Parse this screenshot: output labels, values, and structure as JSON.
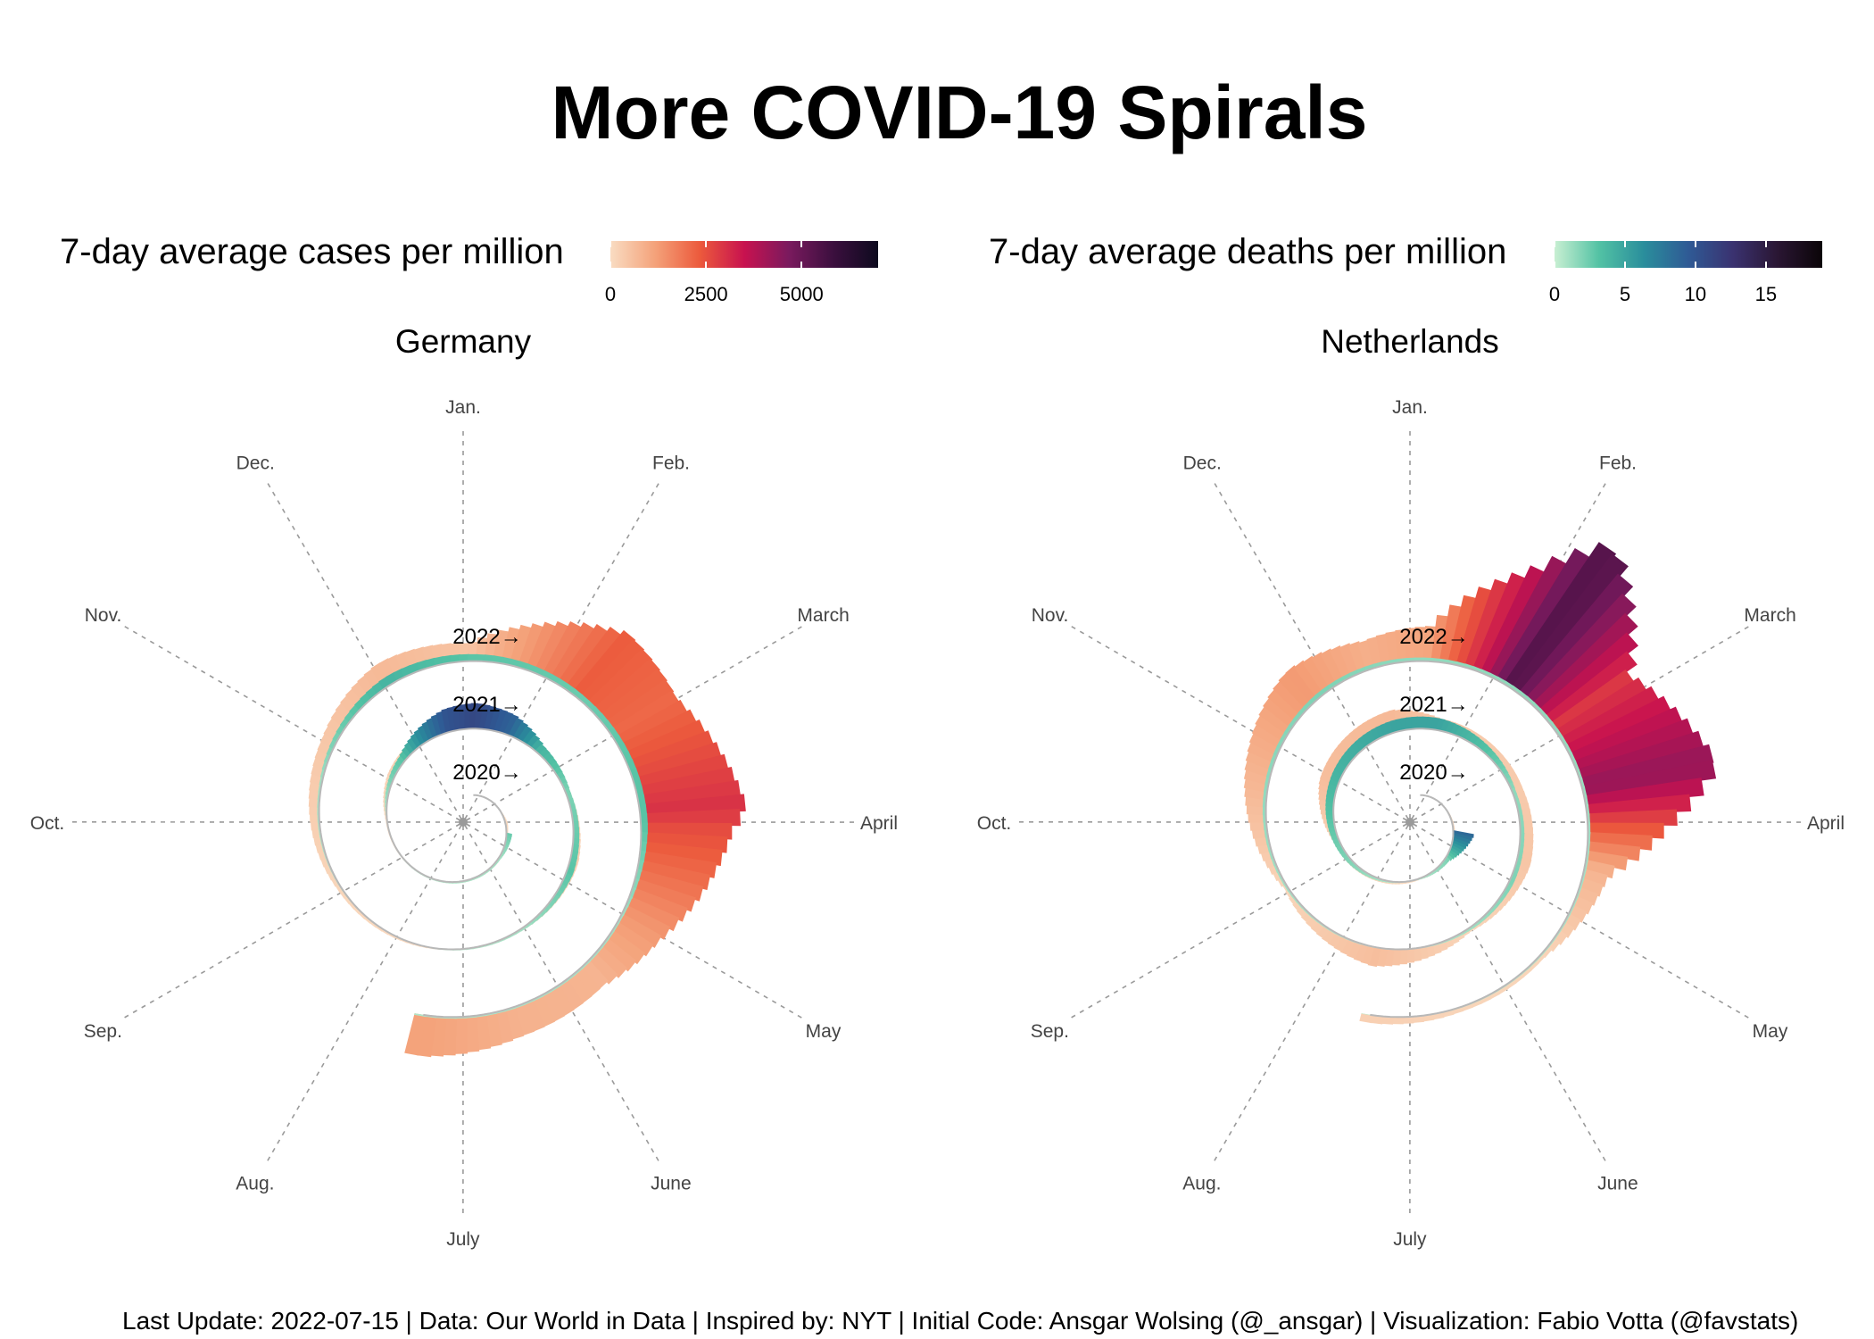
{
  "title": "More COVID-19 Spirals",
  "footer": "Last Update: 2022-07-15 | Data: Our World in Data | Inspired by: NYT | Initial Code: Ansgar Wolsing (@_ansgar) | Visualization: Fabio Votta (@favstats)",
  "months": [
    "Jan.",
    "Feb.",
    "March",
    "April",
    "May",
    "June",
    "July",
    "Aug.",
    "Sep.",
    "Oct.",
    "Nov.",
    "Dec."
  ],
  "year_labels": [
    "2020→",
    "2021→",
    "2022→"
  ],
  "legends": {
    "cases": {
      "title": "7-day average cases per million",
      "ticks": [
        "0",
        "2500",
        "5000"
      ],
      "tick_values": [
        0,
        2500,
        5000
      ],
      "max": 7000,
      "colors": [
        "#f9dcc2",
        "#f4a27a",
        "#ec5a3c",
        "#c8124f",
        "#7a1a5e",
        "#3b0f3e",
        "#0d0a1e"
      ]
    },
    "deaths": {
      "title": "7-day average deaths per million",
      "ticks": [
        "0",
        "5",
        "10",
        "15"
      ],
      "tick_values": [
        0,
        5,
        10,
        15
      ],
      "max": 19,
      "colors": [
        "#c8efd2",
        "#52c2a4",
        "#2a8e9c",
        "#2f5a95",
        "#3a3270",
        "#2a1633",
        "#0b0508"
      ]
    }
  },
  "chart_data": [
    {
      "type": "spiral",
      "title": "Germany",
      "measure": "7-day average cases per million",
      "period": [
        "2020-01",
        "2022-07"
      ],
      "series": [
        {
          "name": "cases",
          "points": [
            [
              "2020-03-15",
              20
            ],
            [
              "2020-04-01",
              70
            ],
            [
              "2020-05-01",
              20
            ],
            [
              "2020-07-01",
              5
            ],
            [
              "2020-10-01",
              40
            ],
            [
              "2020-11-01",
              210
            ],
            [
              "2020-12-15",
              300
            ],
            [
              "2021-01-01",
              260
            ],
            [
              "2021-02-01",
              120
            ],
            [
              "2021-03-15",
              120
            ],
            [
              "2021-04-20",
              250
            ],
            [
              "2021-06-01",
              60
            ],
            [
              "2021-07-01",
              10
            ],
            [
              "2021-09-01",
              120
            ],
            [
              "2021-11-01",
              420
            ],
            [
              "2021-12-01",
              700
            ],
            [
              "2022-01-01",
              500
            ],
            [
              "2022-01-20",
              1300
            ],
            [
              "2022-02-10",
              2300
            ],
            [
              "2022-03-01",
              2100
            ],
            [
              "2022-03-28",
              3000
            ],
            [
              "2022-04-01",
              2600
            ],
            [
              "2022-04-15",
              2000
            ],
            [
              "2022-05-01",
              1300
            ],
            [
              "2022-05-20",
              800
            ],
            [
              "2022-06-15",
              850
            ],
            [
              "2022-07-10",
              1150
            ]
          ]
        },
        {
          "name": "deaths",
          "points": [
            [
              "2020-04-15",
              2.5
            ],
            [
              "2020-05-15",
              1
            ],
            [
              "2020-10-01",
              0.2
            ],
            [
              "2020-11-15",
              3
            ],
            [
              "2020-12-20",
              10
            ],
            [
              "2021-01-05",
              11
            ],
            [
              "2021-01-25",
              9
            ],
            [
              "2021-02-15",
              4
            ],
            [
              "2021-03-15",
              2
            ],
            [
              "2021-04-25",
              3
            ],
            [
              "2021-06-01",
              1
            ],
            [
              "2021-08-01",
              0.1
            ],
            [
              "2021-10-15",
              1
            ],
            [
              "2021-12-01",
              4
            ],
            [
              "2022-01-01",
              3
            ],
            [
              "2022-02-15",
              2.5
            ],
            [
              "2022-03-15",
              3
            ],
            [
              "2022-04-01",
              3
            ],
            [
              "2022-05-01",
              1
            ],
            [
              "2022-07-10",
              0.7
            ]
          ]
        }
      ]
    },
    {
      "type": "spiral",
      "title": "Netherlands",
      "measure": "7-day average deaths per million",
      "period": [
        "2020-01",
        "2022-07"
      ],
      "series": [
        {
          "name": "cases",
          "points": [
            [
              "2020-03-15",
              30
            ],
            [
              "2020-04-10",
              60
            ],
            [
              "2020-06-01",
              10
            ],
            [
              "2020-09-15",
              180
            ],
            [
              "2020-10-25",
              600
            ],
            [
              "2020-12-20",
              700
            ],
            [
              "2021-01-15",
              380
            ],
            [
              "2021-03-15",
              350
            ],
            [
              "2021-04-20",
              450
            ],
            [
              "2021-06-01",
              120
            ],
            [
              "2021-07-15",
              600
            ],
            [
              "2021-09-01",
              120
            ],
            [
              "2021-11-20",
              1300
            ],
            [
              "2021-12-15",
              900
            ],
            [
              "2022-01-05",
              1100
            ],
            [
              "2022-01-25",
              3500
            ],
            [
              "2022-02-05",
              5500
            ],
            [
              "2022-02-25",
              2900
            ],
            [
              "2022-03-20",
              4300
            ],
            [
              "2022-04-01",
              2500
            ],
            [
              "2022-04-15",
              800
            ],
            [
              "2022-05-15",
              150
            ],
            [
              "2022-06-15",
              150
            ],
            [
              "2022-07-10",
              250
            ]
          ]
        },
        {
          "name": "deaths",
          "points": [
            [
              "2020-04-10",
              9
            ],
            [
              "2020-05-15",
              2
            ],
            [
              "2020-07-01",
              0.1
            ],
            [
              "2020-11-01",
              4
            ],
            [
              "2020-12-20",
              5
            ],
            [
              "2021-01-15",
              5
            ],
            [
              "2021-03-15",
              1.5
            ],
            [
              "2021-05-01",
              2
            ],
            [
              "2021-07-01",
              0.2
            ],
            [
              "2021-11-25",
              2
            ],
            [
              "2022-01-01",
              1.5
            ],
            [
              "2022-02-15",
              1.5
            ],
            [
              "2022-07-10",
              0.2
            ]
          ]
        }
      ]
    }
  ]
}
